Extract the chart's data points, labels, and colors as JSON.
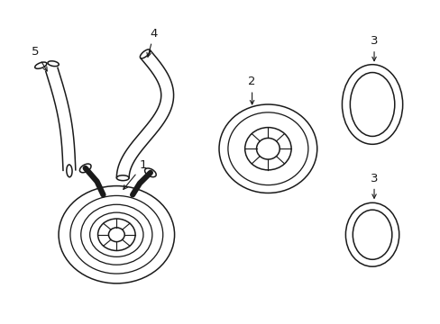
{
  "background_color": "#ffffff",
  "line_color": "#1a1a1a",
  "line_width": 1.1,
  "fig_width": 4.89,
  "fig_height": 3.6,
  "dpi": 100
}
